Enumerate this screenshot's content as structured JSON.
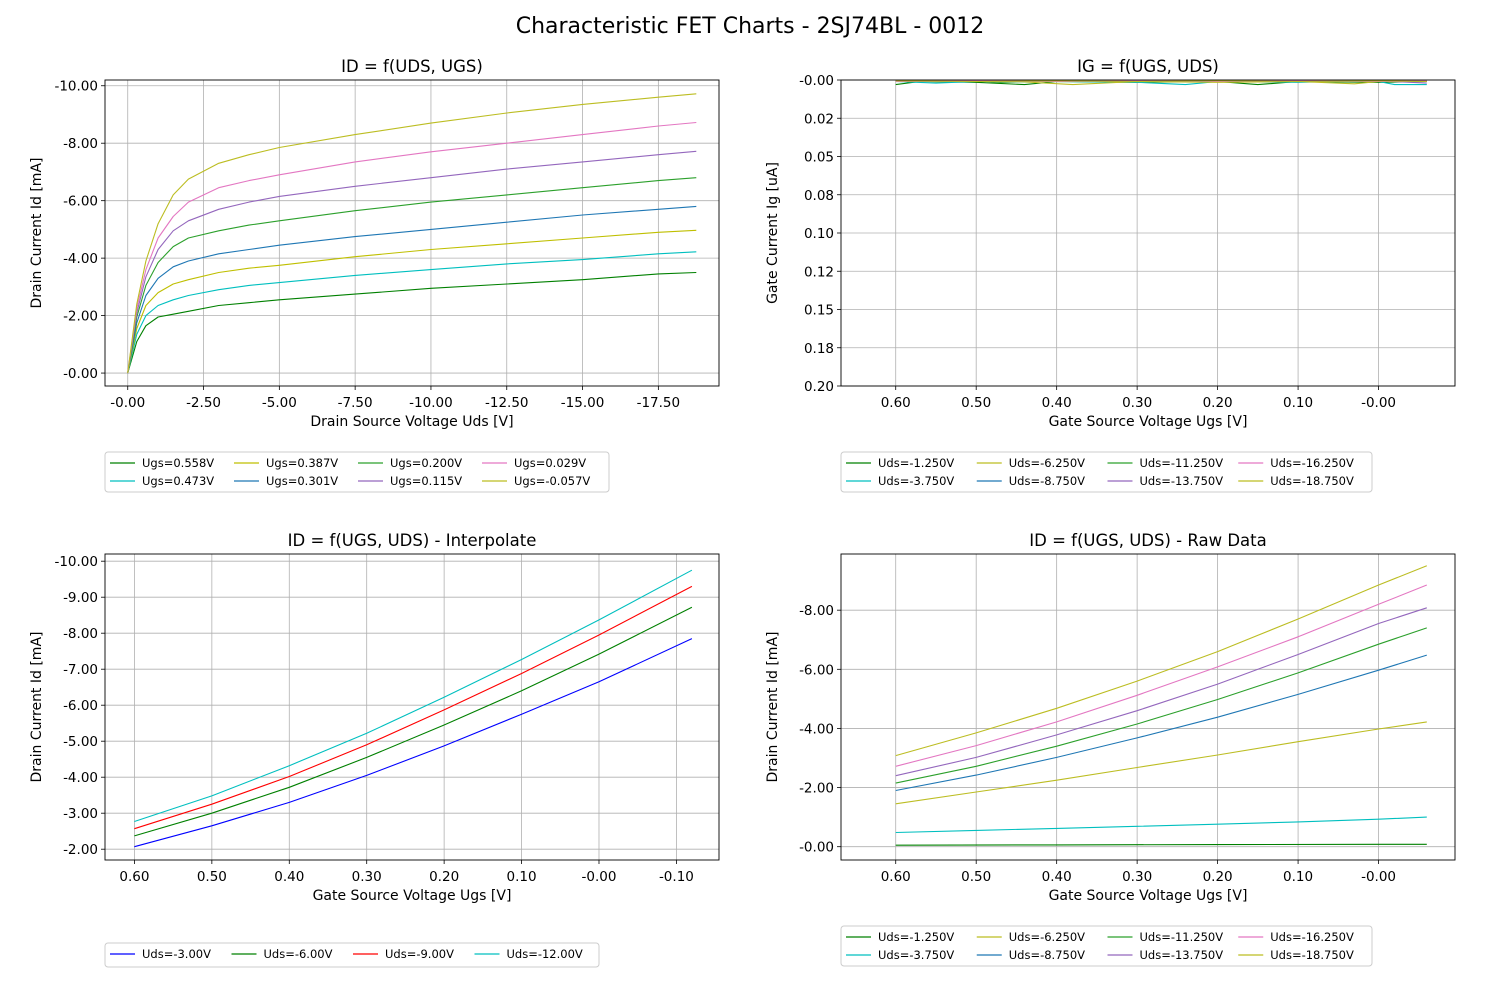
{
  "figure": {
    "title": "Characteristic FET Charts - 2SJ74BL - 0012"
  },
  "chart_data": [
    {
      "type": "line",
      "title": "ID = f(UDS, UGS)",
      "xlabel": "Drain Source Voltage Uds [V]",
      "ylabel": "Drain Current Id [mA]",
      "xlim": [
        0.75,
        -19.5
      ],
      "ylim": [
        0.45,
        -10.2
      ],
      "x_ticks": [
        0,
        -2.5,
        -5,
        -7.5,
        -10,
        -12.5,
        -15,
        -17.5
      ],
      "x_tick_labels": [
        "-0.00",
        "-2.50",
        "-5.00",
        "-7.50",
        "-10.00",
        "-12.50",
        "-15.00",
        "-17.50"
      ],
      "y_ticks": [
        0,
        -2,
        -4,
        -6,
        -8,
        -10
      ],
      "y_tick_labels": [
        "-0.00",
        "-2.00",
        "-4.00",
        "-6.00",
        "-8.00",
        "-10.00"
      ],
      "grid": true,
      "legend_position": "below",
      "legend_columns": 4,
      "series": [
        {
          "name": "Ugs=0.558V",
          "color": "#008000",
          "x": [
            0,
            -0.3,
            -0.6,
            -1,
            -1.5,
            -2,
            -3,
            -4,
            -5,
            -7.5,
            -10,
            -12.5,
            -15,
            -17.5,
            -18.75
          ],
          "y": [
            0,
            -1.1,
            -1.65,
            -1.95,
            -2.05,
            -2.15,
            -2.35,
            -2.45,
            -2.55,
            -2.75,
            -2.95,
            -3.1,
            -3.25,
            -3.45,
            -3.5
          ]
        },
        {
          "name": "Ugs=0.473V",
          "color": "#00bfbf",
          "x": [
            0,
            -0.3,
            -0.6,
            -1,
            -1.5,
            -2,
            -3,
            -4,
            -5,
            -7.5,
            -10,
            -12.5,
            -15,
            -17.5,
            -18.75
          ],
          "y": [
            0,
            -1.35,
            -2.0,
            -2.35,
            -2.55,
            -2.7,
            -2.9,
            -3.05,
            -3.15,
            -3.4,
            -3.6,
            -3.8,
            -3.95,
            -4.15,
            -4.22
          ]
        },
        {
          "name": "Ugs=0.387V",
          "color": "#bfbf00",
          "x": [
            0,
            -0.3,
            -0.6,
            -1,
            -1.5,
            -2,
            -3,
            -4,
            -5,
            -7.5,
            -10,
            -12.5,
            -15,
            -17.5,
            -18.75
          ],
          "y": [
            0,
            -1.55,
            -2.35,
            -2.8,
            -3.1,
            -3.25,
            -3.5,
            -3.65,
            -3.75,
            -4.05,
            -4.3,
            -4.5,
            -4.7,
            -4.9,
            -4.97
          ]
        },
        {
          "name": "Ugs=0.301V",
          "color": "#1f77b4",
          "x": [
            0,
            -0.3,
            -0.6,
            -1,
            -1.5,
            -2,
            -3,
            -4,
            -5,
            -7.5,
            -10,
            -12.5,
            -15,
            -17.5,
            -18.75
          ],
          "y": [
            0,
            -1.75,
            -2.7,
            -3.3,
            -3.7,
            -3.9,
            -4.15,
            -4.3,
            -4.45,
            -4.75,
            -5.0,
            -5.25,
            -5.5,
            -5.7,
            -5.8
          ]
        },
        {
          "name": "Ugs=0.200V",
          "color": "#2ca02c",
          "x": [
            0,
            -0.3,
            -0.6,
            -1,
            -1.5,
            -2,
            -3,
            -4,
            -5,
            -7.5,
            -10,
            -12.5,
            -15,
            -17.5,
            -18.75
          ],
          "y": [
            0,
            -1.95,
            -3.05,
            -3.85,
            -4.4,
            -4.7,
            -4.95,
            -5.15,
            -5.3,
            -5.65,
            -5.95,
            -6.2,
            -6.45,
            -6.7,
            -6.8
          ]
        },
        {
          "name": "Ugs=0.115V",
          "color": "#9467bd",
          "x": [
            0,
            -0.3,
            -0.6,
            -1,
            -1.5,
            -2,
            -3,
            -4,
            -5,
            -7.5,
            -10,
            -12.5,
            -15,
            -17.5,
            -18.75
          ],
          "y": [
            0,
            -2.1,
            -3.35,
            -4.3,
            -4.95,
            -5.3,
            -5.7,
            -5.95,
            -6.15,
            -6.5,
            -6.8,
            -7.1,
            -7.35,
            -7.6,
            -7.72
          ]
        },
        {
          "name": "Ugs=0.029V",
          "color": "#e377c2",
          "x": [
            0,
            -0.3,
            -0.6,
            -1,
            -1.5,
            -2,
            -3,
            -4,
            -5,
            -7.5,
            -10,
            -12.5,
            -15,
            -17.5,
            -18.75
          ],
          "y": [
            0,
            -2.25,
            -3.6,
            -4.7,
            -5.45,
            -5.95,
            -6.45,
            -6.7,
            -6.9,
            -7.35,
            -7.7,
            -8.0,
            -8.3,
            -8.6,
            -8.72
          ]
        },
        {
          "name": "Ugs=-0.057V",
          "color": "#bcbd22",
          "x": [
            0,
            -0.3,
            -0.6,
            -1,
            -1.5,
            -2,
            -3,
            -4,
            -5,
            -7.5,
            -10,
            -12.5,
            -15,
            -17.5,
            -18.75
          ],
          "y": [
            0,
            -2.4,
            -3.9,
            -5.2,
            -6.2,
            -6.75,
            -7.3,
            -7.6,
            -7.85,
            -8.3,
            -8.7,
            -9.05,
            -9.35,
            -9.6,
            -9.72
          ]
        }
      ]
    },
    {
      "type": "line",
      "title": "IG = f(UGS, UDS)",
      "xlabel": "Gate Source Voltage Ugs [V]",
      "ylabel": "Gate Current Ig [uA]",
      "xlim": [
        0.668,
        -0.095
      ],
      "ylim": [
        0.2,
        0
      ],
      "x_ticks": [
        0.6,
        0.5,
        0.4,
        0.3,
        0.2,
        0.1,
        0
      ],
      "x_tick_labels": [
        "0.60",
        "0.50",
        "0.40",
        "0.30",
        "0.20",
        "0.10",
        "-0.00"
      ],
      "y_ticks": [
        0,
        0.025,
        0.05,
        0.075,
        0.1,
        0.125,
        0.15,
        0.175,
        0.2
      ],
      "y_tick_labels": [
        "-0.00",
        "0.02",
        "0.05",
        "0.08",
        "0.10",
        "0.12",
        "0.15",
        "0.18",
        "0.20"
      ],
      "grid": true,
      "legend_position": "below",
      "legend_columns": 4,
      "series": [
        {
          "name": "Uds=-1.250V",
          "color": "#008000",
          "x": [
            0.6,
            0.57,
            0.5,
            0.44,
            0.4,
            0.3,
            0.2,
            0.15,
            0.1,
            0,
            -0.06
          ],
          "y": [
            0.003,
            0.001,
            0.0015,
            0.003,
            0.001,
            0.0015,
            0.001,
            0.003,
            0.001,
            0.0015,
            0.001
          ]
        },
        {
          "name": "Uds=-3.750V",
          "color": "#00bfbf",
          "x": [
            0.6,
            0.55,
            0.5,
            0.4,
            0.3,
            0.24,
            0.2,
            0.1,
            0.05,
            0,
            -0.02,
            -0.06
          ],
          "y": [
            0.001,
            0.002,
            0.001,
            0.001,
            0.0015,
            0.003,
            0.001,
            0.0015,
            0.001,
            0.001,
            0.003,
            0.003
          ]
        },
        {
          "name": "Uds=-6.250V",
          "color": "#bcbd22",
          "x": [
            0.6,
            0.45,
            0.38,
            0.3,
            0.2,
            0.1,
            0.03,
            0,
            -0.06
          ],
          "y": [
            0.001,
            0.001,
            0.003,
            0.001,
            0.0015,
            0.001,
            0.0025,
            0.001,
            0.001
          ]
        },
        {
          "name": "Uds=-8.750V",
          "color": "#1f77b4",
          "x": [
            0.6,
            0.5,
            0.4,
            0.3,
            0.2,
            0.1,
            0,
            -0.06
          ],
          "y": [
            0.001,
            0.0005,
            0.001,
            0.0005,
            0.001,
            0.0005,
            0.001,
            0.0005
          ]
        },
        {
          "name": "Uds=-11.250V",
          "color": "#2ca02c",
          "x": [
            0.6,
            0.5,
            0.47,
            0.4,
            0.3,
            0.2,
            0.1,
            0,
            -0.06
          ],
          "y": [
            0.001,
            0.0005,
            0.0015,
            0.0005,
            0.001,
            0.0005,
            0.001,
            0.0005,
            0.001
          ]
        },
        {
          "name": "Uds=-13.750V",
          "color": "#9467bd",
          "x": [
            0.6,
            0.5,
            0.4,
            0.3,
            0.2,
            0.1,
            0,
            -0.06
          ],
          "y": [
            0.0005,
            0.001,
            0.0005,
            0.001,
            0.0005,
            0.001,
            0.0005,
            0.002
          ]
        },
        {
          "name": "Uds=-16.250V",
          "color": "#e377c2",
          "x": [
            0.6,
            0.5,
            0.4,
            0.3,
            0.2,
            0.1,
            0,
            -0.06
          ],
          "y": [
            0.001,
            0.0005,
            0.001,
            0.0005,
            0.001,
            0.0005,
            0.001,
            0.0005
          ]
        },
        {
          "name": "Uds=-18.750V",
          "color": "#bcbd22",
          "x": [
            0.6,
            0.5,
            0.4,
            0.3,
            0.2,
            0.1,
            0,
            -0.06
          ],
          "y": [
            0.0005,
            0.001,
            0.0005,
            0.001,
            0.0005,
            0.001,
            0.0005,
            0.001
          ]
        }
      ]
    },
    {
      "type": "line",
      "title": "ID = f(UGS, UDS) - Interpolate",
      "xlabel": "Gate Source Voltage Ugs [V]",
      "ylabel": "Drain Current Id [mA]",
      "xlim": [
        0.638,
        -0.155
      ],
      "ylim": [
        -1.7,
        -10.2
      ],
      "x_ticks": [
        0.6,
        0.5,
        0.4,
        0.3,
        0.2,
        0.1,
        0,
        -0.1
      ],
      "x_tick_labels": [
        "0.60",
        "0.50",
        "0.40",
        "0.30",
        "0.20",
        "0.10",
        "-0.00",
        "-0.10"
      ],
      "y_ticks": [
        -2,
        -3,
        -4,
        -5,
        -6,
        -7,
        -8,
        -9,
        -10
      ],
      "y_tick_labels": [
        "-2.00",
        "-3.00",
        "-4.00",
        "-5.00",
        "-6.00",
        "-7.00",
        "-8.00",
        "-9.00",
        "-10.00"
      ],
      "grid": true,
      "legend_position": "below",
      "legend_columns": 4,
      "series": [
        {
          "name": "Uds=-3.00V",
          "color": "#0000ff",
          "x": [
            0.6,
            0.5,
            0.4,
            0.3,
            0.2,
            0.1,
            0,
            -0.12
          ],
          "y": [
            -2.07,
            -2.65,
            -3.3,
            -4.05,
            -4.87,
            -5.75,
            -6.65,
            -7.85
          ]
        },
        {
          "name": "Uds=-6.00V",
          "color": "#008000",
          "x": [
            0.6,
            0.5,
            0.4,
            0.3,
            0.2,
            0.1,
            0,
            -0.12
          ],
          "y": [
            -2.37,
            -3.0,
            -3.72,
            -4.55,
            -5.45,
            -6.4,
            -7.42,
            -8.72
          ]
        },
        {
          "name": "Uds=-9.00V",
          "color": "#ff0000",
          "x": [
            0.6,
            0.5,
            0.4,
            0.3,
            0.2,
            0.1,
            0,
            -0.12
          ],
          "y": [
            -2.57,
            -3.25,
            -4.02,
            -4.9,
            -5.87,
            -6.88,
            -7.95,
            -9.3
          ]
        },
        {
          "name": "Uds=-12.00V",
          "color": "#00bfbf",
          "x": [
            0.6,
            0.5,
            0.4,
            0.3,
            0.2,
            0.1,
            0,
            -0.12
          ],
          "y": [
            -2.77,
            -3.48,
            -4.32,
            -5.22,
            -6.22,
            -7.27,
            -8.37,
            -9.75
          ]
        }
      ]
    },
    {
      "type": "line",
      "title": "ID = f(UGS, UDS) - Raw Data",
      "xlabel": "Gate Source Voltage Ugs [V]",
      "ylabel": "Drain Current Id [mA]",
      "xlim": [
        0.668,
        -0.095
      ],
      "ylim": [
        0.45,
        -9.9
      ],
      "x_ticks": [
        0.6,
        0.5,
        0.4,
        0.3,
        0.2,
        0.1,
        0
      ],
      "x_tick_labels": [
        "0.60",
        "0.50",
        "0.40",
        "0.30",
        "0.20",
        "0.10",
        "-0.00"
      ],
      "y_ticks": [
        0,
        -2,
        -4,
        -6,
        -8
      ],
      "y_tick_labels": [
        "-0.00",
        "-2.00",
        "-4.00",
        "-6.00",
        "-8.00"
      ],
      "grid": true,
      "legend_position": "below",
      "legend_columns": 4,
      "series": [
        {
          "name": "Uds=-1.250V",
          "color": "#008000",
          "x": [
            0.6,
            0.4,
            0.2,
            0,
            -0.06
          ],
          "y": [
            -0.05,
            -0.06,
            -0.07,
            -0.08,
            -0.08
          ]
        },
        {
          "name": "Uds=-3.750V",
          "color": "#00bfbf",
          "x": [
            0.6,
            0.5,
            0.4,
            0.3,
            0.2,
            0.1,
            0,
            -0.06
          ],
          "y": [
            -0.48,
            -0.55,
            -0.62,
            -0.69,
            -0.76,
            -0.84,
            -0.93,
            -1.0
          ]
        },
        {
          "name": "Uds=-6.250V",
          "color": "#bcbd22",
          "x": [
            0.6,
            0.5,
            0.4,
            0.3,
            0.2,
            0.1,
            0,
            -0.06
          ],
          "y": [
            -1.45,
            -1.85,
            -2.25,
            -2.68,
            -3.1,
            -3.55,
            -3.98,
            -4.22
          ]
        },
        {
          "name": "Uds=-8.750V",
          "color": "#1f77b4",
          "x": [
            0.6,
            0.5,
            0.4,
            0.3,
            0.2,
            0.1,
            0,
            -0.06
          ],
          "y": [
            -1.9,
            -2.42,
            -3.02,
            -3.68,
            -4.38,
            -5.15,
            -5.97,
            -6.48
          ]
        },
        {
          "name": "Uds=-11.250V",
          "color": "#2ca02c",
          "x": [
            0.6,
            0.5,
            0.4,
            0.3,
            0.2,
            0.1,
            0,
            -0.06
          ],
          "y": [
            -2.15,
            -2.72,
            -3.4,
            -4.15,
            -4.98,
            -5.88,
            -6.85,
            -7.4
          ]
        },
        {
          "name": "Uds=-13.750V",
          "color": "#9467bd",
          "x": [
            0.6,
            0.5,
            0.4,
            0.3,
            0.2,
            0.1,
            0,
            -0.06
          ],
          "y": [
            -2.4,
            -3.02,
            -3.78,
            -4.6,
            -5.5,
            -6.5,
            -7.55,
            -8.08
          ]
        },
        {
          "name": "Uds=-16.250V",
          "color": "#e377c2",
          "x": [
            0.6,
            0.5,
            0.4,
            0.3,
            0.2,
            0.1,
            0,
            -0.06
          ],
          "y": [
            -2.72,
            -3.42,
            -4.22,
            -5.12,
            -6.08,
            -7.1,
            -8.2,
            -8.85
          ]
        },
        {
          "name": "Uds=-18.750V",
          "color": "#bcbd22",
          "x": [
            0.6,
            0.5,
            0.4,
            0.3,
            0.2,
            0.1,
            0,
            -0.06
          ],
          "y": [
            -3.08,
            -3.85,
            -4.68,
            -5.6,
            -6.6,
            -7.7,
            -8.85,
            -9.5
          ]
        }
      ]
    }
  ]
}
